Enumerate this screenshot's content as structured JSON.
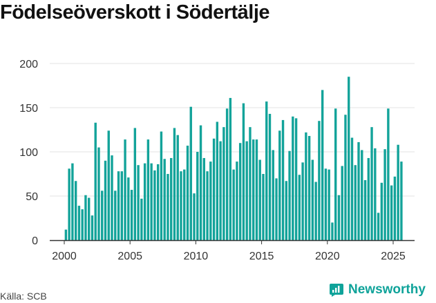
{
  "title": "Födelseöverskott i Södertälje",
  "source": "Källa: SCB",
  "brand": "Newsworthy",
  "colors": {
    "bar": "#13a39a",
    "grid": "#e3e3e3",
    "axis": "#333333",
    "brand": "#0fa39a"
  },
  "chart_data": {
    "type": "bar",
    "title": "Födelseöverskott i Södertälje",
    "xlabel": "",
    "ylabel": "",
    "ylim": [
      0,
      200
    ],
    "yticks": [
      0,
      50,
      100,
      150,
      200
    ],
    "xticks": [
      2000,
      2005,
      2010,
      2015,
      2020,
      2025
    ],
    "xlim": [
      1999.125,
      2026.5
    ],
    "grid": true,
    "bar_frequency": "quarterly",
    "start": 2000.125,
    "series": [
      {
        "name": "Födelseöverskott",
        "values": [
          12,
          81,
          87,
          67,
          39,
          35,
          51,
          48,
          28,
          133,
          105,
          56,
          90,
          124,
          96,
          56,
          78,
          78,
          114,
          71,
          57,
          127,
          85,
          47,
          87,
          114,
          87,
          79,
          86,
          123,
          92,
          75,
          93,
          127,
          119,
          78,
          80,
          107,
          151,
          53,
          100,
          130,
          93,
          78,
          89,
          115,
          134,
          112,
          128,
          149,
          161,
          80,
          89,
          110,
          155,
          112,
          128,
          114,
          114,
          91,
          75,
          157,
          143,
          102,
          70,
          124,
          136,
          67,
          101,
          140,
          138,
          74,
          88,
          122,
          118,
          91,
          66,
          135,
          170,
          81,
          80,
          20,
          149,
          51,
          84,
          142,
          185,
          116,
          85,
          111,
          102,
          68,
          93,
          128,
          104,
          31,
          65,
          103,
          149,
          62,
          72,
          108,
          89
        ]
      }
    ]
  }
}
